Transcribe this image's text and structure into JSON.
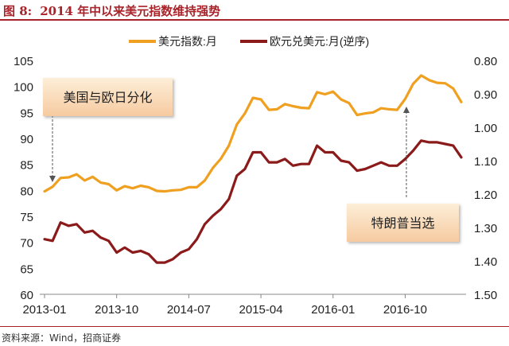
{
  "figure": {
    "number": "图 8:",
    "title": "2014 年中以来美元指数维持强势",
    "source": "资料来源：Wind，招商证券"
  },
  "chart_data": {
    "type": "line",
    "x_tick_labels": [
      "2013-01",
      "2013-10",
      "2014-07",
      "2015-04",
      "2016-01",
      "2016-10"
    ],
    "x": [
      "2013-01",
      "2013-02",
      "2013-03",
      "2013-04",
      "2013-05",
      "2013-06",
      "2013-07",
      "2013-08",
      "2013-09",
      "2013-10",
      "2013-11",
      "2013-12",
      "2014-01",
      "2014-02",
      "2014-03",
      "2014-04",
      "2014-05",
      "2014-06",
      "2014-07",
      "2014-08",
      "2014-09",
      "2014-10",
      "2014-11",
      "2014-12",
      "2015-01",
      "2015-02",
      "2015-03",
      "2015-04",
      "2015-05",
      "2015-06",
      "2015-07",
      "2015-08",
      "2015-09",
      "2015-10",
      "2015-11",
      "2015-12",
      "2016-01",
      "2016-02",
      "2016-03",
      "2016-04",
      "2016-05",
      "2016-06",
      "2016-07",
      "2016-08",
      "2016-09",
      "2016-10",
      "2016-11",
      "2016-12",
      "2017-01",
      "2017-02",
      "2017-03",
      "2017-04",
      "2017-05"
    ],
    "y_left": {
      "ticks": [
        "60",
        "65",
        "70",
        "75",
        "80",
        "85",
        "90",
        "95",
        "100",
        "105"
      ],
      "min": 60,
      "max": 105
    },
    "y_right": {
      "ticks": [
        "0.80",
        "0.90",
        "1.00",
        "1.10",
        "1.20",
        "1.30",
        "1.40",
        "1.50"
      ],
      "min": 0.8,
      "max": 1.5,
      "reversed": true
    },
    "series": [
      {
        "name": "美元指数:月",
        "axis": "left",
        "color": "#f0a020",
        "values": [
          79.8,
          80.7,
          82.4,
          82.5,
          83.1,
          81.9,
          82.6,
          81.5,
          81.2,
          80.0,
          80.8,
          80.4,
          80.9,
          80.6,
          79.9,
          79.8,
          80.0,
          80.1,
          80.6,
          80.6,
          81.9,
          84.3,
          86.1,
          88.6,
          92.7,
          94.8,
          97.8,
          97.5,
          95.5,
          95.6,
          96.6,
          96.2,
          95.9,
          95.8,
          98.9,
          98.5,
          99.0,
          97.5,
          96.8,
          94.5,
          94.8,
          95.0,
          95.8,
          95.6,
          95.5,
          97.6,
          100.5,
          102.1,
          101.2,
          100.7,
          100.6,
          99.6,
          97.0
        ]
      },
      {
        "name": "欧元兑美元:月(逆序)",
        "axis": "right",
        "color": "#8b1a1a",
        "values": [
          1.335,
          1.34,
          1.285,
          1.295,
          1.29,
          1.315,
          1.31,
          1.33,
          1.34,
          1.375,
          1.36,
          1.375,
          1.37,
          1.38,
          1.405,
          1.405,
          1.395,
          1.375,
          1.365,
          1.335,
          1.29,
          1.265,
          1.245,
          1.215,
          1.145,
          1.125,
          1.075,
          1.075,
          1.105,
          1.105,
          1.095,
          1.115,
          1.11,
          1.11,
          1.055,
          1.075,
          1.075,
          1.1,
          1.105,
          1.13,
          1.125,
          1.115,
          1.105,
          1.115,
          1.115,
          1.095,
          1.07,
          1.04,
          1.045,
          1.045,
          1.05,
          1.055,
          1.09
        ]
      }
    ],
    "legend_position": "top",
    "annotations": [
      {
        "text": "美国与欧日分化",
        "anchor_x": "2013-01"
      },
      {
        "text": "特朗普当选",
        "anchor_x": "2016-11"
      }
    ],
    "grid": false
  }
}
